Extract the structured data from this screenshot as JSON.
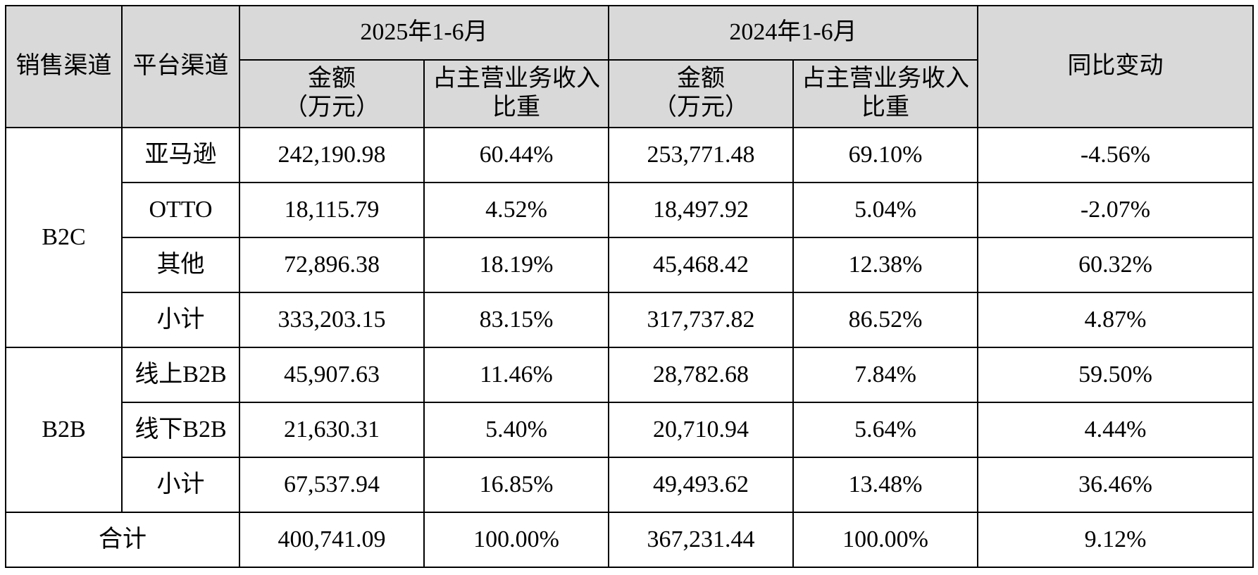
{
  "header": {
    "sales_channel": "销售渠道",
    "platform_channel": "平台渠道",
    "period_2025": "2025年1-6月",
    "period_2024": "2024年1-6月",
    "yoy_change": "同比变动",
    "amount_line1": "金额",
    "amount_line2": "（万元）",
    "share_line1": "占主营业务收入",
    "share_line2": "比重"
  },
  "groups": [
    {
      "channel": "B2C",
      "rows": [
        {
          "platform": "亚马逊",
          "amount_2025": "242,190.98",
          "share_2025": "60.44%",
          "amount_2024": "253,771.48",
          "share_2024": "69.10%",
          "yoy": "-4.56%"
        },
        {
          "platform": "OTTO",
          "amount_2025": "18,115.79",
          "share_2025": "4.52%",
          "amount_2024": "18,497.92",
          "share_2024": "5.04%",
          "yoy": "-2.07%"
        },
        {
          "platform": "其他",
          "amount_2025": "72,896.38",
          "share_2025": "18.19%",
          "amount_2024": "45,468.42",
          "share_2024": "12.38%",
          "yoy": "60.32%"
        },
        {
          "platform": "小计",
          "amount_2025": "333,203.15",
          "share_2025": "83.15%",
          "amount_2024": "317,737.82",
          "share_2024": "86.52%",
          "yoy": "4.87%"
        }
      ]
    },
    {
      "channel": "B2B",
      "rows": [
        {
          "platform": "线上B2B",
          "amount_2025": "45,907.63",
          "share_2025": "11.46%",
          "amount_2024": "28,782.68",
          "share_2024": "7.84%",
          "yoy": "59.50%"
        },
        {
          "platform": "线下B2B",
          "amount_2025": "21,630.31",
          "share_2025": "5.40%",
          "amount_2024": "20,710.94",
          "share_2024": "5.64%",
          "yoy": "4.44%"
        },
        {
          "platform": "小计",
          "amount_2025": "67,537.94",
          "share_2025": "16.85%",
          "amount_2024": "49,493.62",
          "share_2024": "13.48%",
          "yoy": "36.46%"
        }
      ]
    }
  ],
  "total": {
    "label": "合计",
    "amount_2025": "400,741.09",
    "share_2025": "100.00%",
    "amount_2024": "367,231.44",
    "share_2024": "100.00%",
    "yoy": "9.12%"
  },
  "colors": {
    "header_bg": "#d9d9d9",
    "border": "#000000"
  }
}
